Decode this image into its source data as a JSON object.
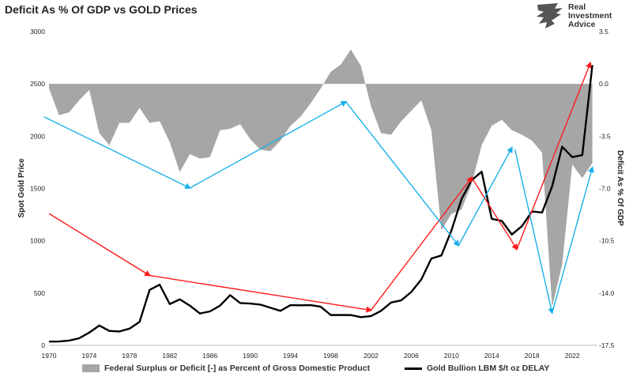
{
  "header": {
    "title": "Deficit As % Of GDP vs GOLD Prices"
  },
  "logo": {
    "lines": [
      "Real",
      "Investment",
      "Advice"
    ],
    "icon": "eagle-icon"
  },
  "legend": {
    "area_label": "Federal Surplus or Deficit [-] as Percent of Gross Domestic Product",
    "line_label": "Gold Bullion LBM $/t oz DELAY"
  },
  "chart_data": {
    "type": "line",
    "title": "Deficit As % Of GDP vs GOLD Prices",
    "ylabel": "Spot Gold Price",
    "y2label": "Deficit As % Of GDP",
    "xlim": [
      1970,
      2024.5
    ],
    "ylim": [
      0,
      3000
    ],
    "y2lim": [
      -17.5,
      3.5
    ],
    "x_ticks": [
      1970,
      1974,
      1978,
      1982,
      1986,
      1990,
      1994,
      1998,
      2002,
      2006,
      2010,
      2014,
      2018,
      2022
    ],
    "y_ticks": [
      0,
      500,
      1000,
      1500,
      2000,
      2500,
      3000
    ],
    "y2_ticks": [
      "3.5",
      "0.0",
      "-3.5",
      "-7.0",
      "-10.5",
      "-14.0",
      "-17.5"
    ],
    "colors": {
      "deficit_area": "#a6a6a6",
      "gold_line": "#000000",
      "red_arrows": "#ff1a1a",
      "blue_arrows": "#1ab0ea"
    },
    "series": [
      {
        "name": "Federal Surplus or Deficit [-] as Percent of Gross Domestic Product",
        "axis": "right",
        "type": "area",
        "x": [
          1970,
          1971,
          1972,
          1973,
          1974,
          1975,
          1976,
          1977,
          1978,
          1979,
          1980,
          1981,
          1982,
          1983,
          1984,
          1985,
          1986,
          1987,
          1988,
          1989,
          1990,
          1991,
          1992,
          1993,
          1994,
          1995,
          1996,
          1997,
          1998,
          1999,
          2000,
          2001,
          2002,
          2003,
          2004,
          2005,
          2006,
          2007,
          2008,
          2009,
          2010,
          2011,
          2012,
          2013,
          2014,
          2015,
          2016,
          2017,
          2018,
          2019,
          2020,
          2021,
          2022,
          2023,
          2024
        ],
        "values": [
          -0.3,
          -2.1,
          -1.9,
          -1.1,
          -0.4,
          -3.3,
          -4.1,
          -2.6,
          -2.6,
          -1.6,
          -2.6,
          -2.5,
          -3.9,
          -5.9,
          -4.7,
          -5.0,
          -4.9,
          -3.1,
          -3.0,
          -2.7,
          -3.7,
          -4.4,
          -4.5,
          -3.8,
          -2.8,
          -2.2,
          -1.3,
          -0.3,
          0.8,
          1.3,
          2.3,
          1.2,
          -1.5,
          -3.3,
          -3.4,
          -2.5,
          -1.8,
          -1.1,
          -3.1,
          -9.8,
          -8.7,
          -8.4,
          -6.7,
          -4.1,
          -2.8,
          -2.4,
          -3.1,
          -3.4,
          -3.8,
          -4.6,
          -14.9,
          -12.1,
          -5.4,
          -6.3,
          -5.3
        ]
      },
      {
        "name": "Gold Bullion LBM $/t oz DELAY",
        "axis": "left",
        "type": "line",
        "x": [
          1970,
          1971,
          1972,
          1973,
          1974,
          1975,
          1976,
          1977,
          1978,
          1979,
          1980,
          1981,
          1982,
          1983,
          1984,
          1985,
          1986,
          1987,
          1988,
          1989,
          1990,
          1991,
          1992,
          1993,
          1994,
          1995,
          1996,
          1997,
          1998,
          1999,
          2000,
          2001,
          2002,
          2003,
          2004,
          2005,
          2006,
          2007,
          2008,
          2009,
          2010,
          2011,
          2012,
          2013,
          2014,
          2015,
          2016,
          2017,
          2018,
          2019,
          2020,
          2021,
          2022,
          2023,
          2024
        ],
        "values": [
          36,
          37,
          46,
          68,
          122,
          190,
          138,
          133,
          160,
          225,
          530,
          580,
          395,
          440,
          380,
          305,
          325,
          380,
          480,
          405,
          400,
          390,
          360,
          330,
          385,
          383,
          385,
          370,
          290,
          290,
          290,
          270,
          280,
          330,
          410,
          430,
          510,
          630,
          830,
          860,
          1100,
          1400,
          1580,
          1660,
          1210,
          1190,
          1060,
          1140,
          1280,
          1270,
          1520,
          1900,
          1800,
          1820,
          2680
        ]
      }
    ],
    "annotations": {
      "red_arrows": [
        {
          "from": [
            1970,
            1260
          ],
          "to": [
            1980,
            668
          ]
        },
        {
          "from": [
            1980,
            668
          ],
          "to": [
            2002,
            336
          ]
        },
        {
          "from": [
            2002,
            336
          ],
          "to": [
            2012,
            1605
          ]
        },
        {
          "from": [
            2012,
            1605
          ],
          "to": [
            2016.5,
            920
          ]
        },
        {
          "from": [
            2016.5,
            920
          ],
          "to": [
            2023.8,
            2700
          ]
        }
      ],
      "blue_arrows": [
        {
          "from": [
            1969.5,
            2185
          ],
          "to": [
            1984,
            1505
          ]
        },
        {
          "from": [
            1984,
            1505
          ],
          "to": [
            1999.5,
            2330
          ]
        },
        {
          "from": [
            1999.5,
            2330
          ],
          "to": [
            2010.7,
            955
          ]
        },
        {
          "from": [
            2010.7,
            955
          ],
          "to": [
            2016,
            1890
          ]
        },
        {
          "from": [
            2016.3,
            1875
          ],
          "to": [
            2020,
            310
          ]
        },
        {
          "from": [
            2020,
            310
          ],
          "to": [
            2024,
            1700
          ]
        }
      ]
    }
  }
}
